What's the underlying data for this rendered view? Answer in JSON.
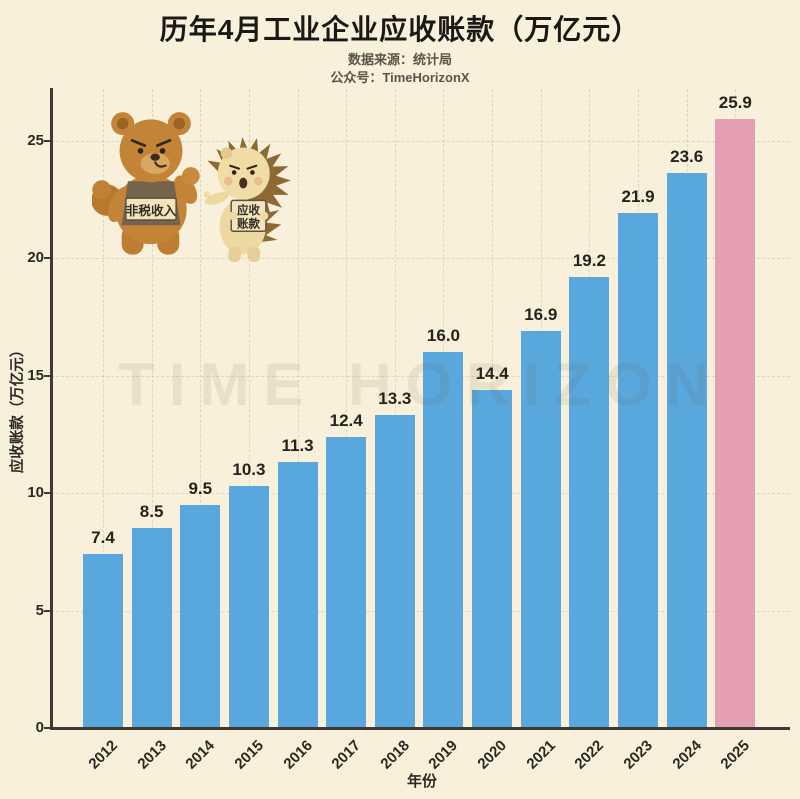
{
  "header": {
    "title": "历年4月工业企业应收账款（万亿元）",
    "subtitle_source": "数据来源：统计局",
    "subtitle_account": "公众号：TimeHorizonX"
  },
  "watermark": {
    "text": "TIME HORIZON"
  },
  "mascots": {
    "bear_sign": "非税收入",
    "hedgehog_sign_line1": "应收",
    "hedgehog_sign_line2": "账款"
  },
  "chart_data": {
    "type": "bar",
    "title": "历年4月工业企业应收账款（万亿元）",
    "categories": [
      "2012",
      "2013",
      "2014",
      "2015",
      "2016",
      "2017",
      "2018",
      "2019",
      "2020",
      "2021",
      "2022",
      "2023",
      "2024",
      "2025"
    ],
    "values": [
      7.4,
      8.5,
      9.5,
      10.3,
      11.3,
      12.4,
      13.3,
      16.0,
      14.4,
      16.9,
      19.2,
      21.9,
      23.6,
      25.9
    ],
    "xlabel": "年份",
    "ylabel": "应收账款（万亿元）",
    "ylim": [
      0,
      27.2
    ],
    "yticks": [
      0,
      5,
      10,
      15,
      20,
      25
    ],
    "grid": true,
    "legend": false,
    "bar_color": "#58a7dd",
    "highlight_color": "#e59fb3",
    "highlight_index": 13,
    "background_color": "#f8f0da"
  }
}
